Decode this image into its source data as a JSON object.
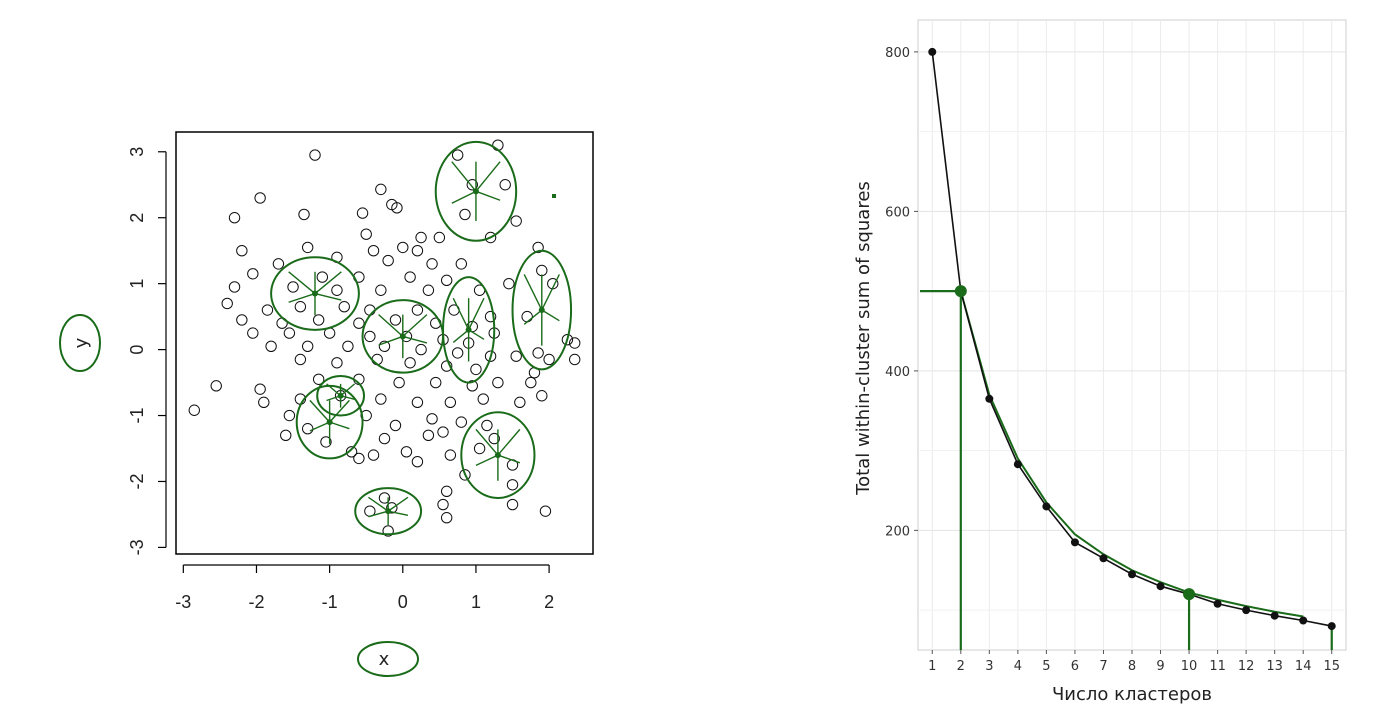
{
  "chart_data": [
    {
      "type": "scatter",
      "title": "",
      "xlabel": "x",
      "ylabel": "y",
      "xlim": [
        -3.1,
        2.6
      ],
      "ylim": [
        -3.1,
        3.3
      ],
      "x_ticks": [
        "-3",
        "-2",
        "-1",
        "0",
        "1",
        "2"
      ],
      "y_ticks": [
        "-3",
        "-2",
        "-1",
        "0",
        "1",
        "2",
        "3"
      ],
      "grid": false,
      "marker": "open-circle",
      "annotation_color": "#1a6b1a",
      "points": [
        [
          -1.2,
          2.95
        ],
        [
          -0.3,
          2.43
        ],
        [
          -0.15,
          2.2
        ],
        [
          -0.08,
          2.15
        ],
        [
          -0.55,
          2.07
        ],
        [
          -1.35,
          2.05
        ],
        [
          -2.3,
          2.0
        ],
        [
          -1.95,
          2.3
        ],
        [
          -0.5,
          1.75
        ],
        [
          0.25,
          1.7
        ],
        [
          0.5,
          1.7
        ],
        [
          -1.3,
          1.55
        ],
        [
          -0.4,
          1.5
        ],
        [
          0.0,
          1.55
        ],
        [
          0.2,
          1.5
        ],
        [
          -2.2,
          1.5
        ],
        [
          -0.9,
          1.4
        ],
        [
          -0.2,
          1.35
        ],
        [
          0.4,
          1.3
        ],
        [
          0.8,
          1.3
        ],
        [
          -1.7,
          1.3
        ],
        [
          -2.05,
          1.15
        ],
        [
          -1.1,
          1.1
        ],
        [
          -0.6,
          1.1
        ],
        [
          0.1,
          1.1
        ],
        [
          0.6,
          1.05
        ],
        [
          -2.3,
          0.95
        ],
        [
          -1.5,
          0.95
        ],
        [
          -0.9,
          0.9
        ],
        [
          -0.3,
          0.9
        ],
        [
          0.35,
          0.9
        ],
        [
          1.05,
          0.9
        ],
        [
          -2.4,
          0.7
        ],
        [
          -1.85,
          0.6
        ],
        [
          -1.4,
          0.65
        ],
        [
          -0.8,
          0.65
        ],
        [
          -0.45,
          0.6
        ],
        [
          0.2,
          0.6
        ],
        [
          0.7,
          0.6
        ],
        [
          1.2,
          0.5
        ],
        [
          -2.2,
          0.45
        ],
        [
          -1.65,
          0.4
        ],
        [
          -1.15,
          0.45
        ],
        [
          -0.6,
          0.4
        ],
        [
          -0.1,
          0.45
        ],
        [
          0.45,
          0.4
        ],
        [
          0.95,
          0.35
        ],
        [
          1.25,
          0.25
        ],
        [
          -2.05,
          0.25
        ],
        [
          -1.55,
          0.25
        ],
        [
          -1.0,
          0.25
        ],
        [
          -0.45,
          0.2
        ],
        [
          0.05,
          0.2
        ],
        [
          0.55,
          0.15
        ],
        [
          0.9,
          0.1
        ],
        [
          -1.8,
          0.05
        ],
        [
          -1.3,
          0.05
        ],
        [
          -0.75,
          0.05
        ],
        [
          -0.25,
          0.05
        ],
        [
          0.25,
          0.0
        ],
        [
          0.75,
          -0.05
        ],
        [
          1.2,
          -0.1
        ],
        [
          1.55,
          -0.1
        ],
        [
          -1.4,
          -0.15
        ],
        [
          -0.9,
          -0.2
        ],
        [
          -0.35,
          -0.15
        ],
        [
          0.1,
          -0.2
        ],
        [
          0.6,
          -0.25
        ],
        [
          1.0,
          -0.3
        ],
        [
          -2.55,
          -0.55
        ],
        [
          -1.95,
          -0.6
        ],
        [
          -1.15,
          -0.45
        ],
        [
          -0.6,
          -0.45
        ],
        [
          -0.05,
          -0.5
        ],
        [
          0.45,
          -0.5
        ],
        [
          0.95,
          -0.55
        ],
        [
          1.3,
          -0.5
        ],
        [
          1.75,
          -0.5
        ],
        [
          -1.9,
          -0.8
        ],
        [
          -1.4,
          -0.75
        ],
        [
          -0.85,
          -0.7
        ],
        [
          -0.3,
          -0.75
        ],
        [
          0.2,
          -0.8
        ],
        [
          0.65,
          -0.8
        ],
        [
          1.1,
          -0.75
        ],
        [
          1.6,
          -0.8
        ],
        [
          1.9,
          -0.7
        ],
        [
          -2.85,
          -0.92
        ],
        [
          -1.55,
          -1.0
        ],
        [
          -0.5,
          -1.0
        ],
        [
          0.4,
          -1.05
        ],
        [
          0.8,
          -1.1
        ],
        [
          -1.3,
          -1.2
        ],
        [
          -0.1,
          -1.15
        ],
        [
          0.55,
          -1.25
        ],
        [
          1.15,
          -1.15
        ],
        [
          -1.05,
          -1.4
        ],
        [
          -0.25,
          -1.35
        ],
        [
          0.35,
          -1.3
        ],
        [
          1.25,
          -1.35
        ],
        [
          -1.6,
          -1.3
        ],
        [
          -0.7,
          -1.55
        ],
        [
          0.05,
          -1.55
        ],
        [
          0.65,
          -1.6
        ],
        [
          1.05,
          -1.5
        ],
        [
          -0.4,
          -1.6
        ],
        [
          0.2,
          -1.7
        ],
        [
          1.5,
          -1.75
        ],
        [
          -0.6,
          -1.65
        ],
        [
          0.85,
          -1.9
        ],
        [
          1.5,
          -2.05
        ],
        [
          0.6,
          -2.15
        ],
        [
          -0.25,
          -2.25
        ],
        [
          0.55,
          -2.35
        ],
        [
          -0.45,
          -2.45
        ],
        [
          -0.15,
          -2.4
        ],
        [
          1.5,
          -2.35
        ],
        [
          1.95,
          -2.45
        ],
        [
          0.6,
          -2.55
        ],
        [
          -0.2,
          -2.75
        ],
        [
          0.75,
          2.95
        ],
        [
          1.3,
          3.1
        ],
        [
          0.95,
          2.5
        ],
        [
          1.4,
          2.5
        ],
        [
          0.85,
          2.05
        ],
        [
          1.55,
          1.95
        ],
        [
          1.2,
          1.7
        ],
        [
          1.85,
          1.55
        ],
        [
          1.9,
          1.2
        ],
        [
          1.45,
          1.0
        ],
        [
          2.05,
          1.0
        ],
        [
          1.7,
          0.5
        ],
        [
          2.25,
          0.15
        ],
        [
          2.35,
          0.1
        ],
        [
          1.85,
          -0.05
        ],
        [
          2.0,
          -0.15
        ],
        [
          1.8,
          -0.35
        ],
        [
          2.35,
          -0.15
        ]
      ]
    },
    {
      "type": "line",
      "title": "",
      "xlabel": "Число кластеров",
      "ylabel": "Total within-cluster sum of squares",
      "categories": [
        "1",
        "2",
        "3",
        "4",
        "5",
        "6",
        "7",
        "8",
        "9",
        "10",
        "11",
        "12",
        "13",
        "14",
        "15"
      ],
      "y_ticks": [
        "200",
        "400",
        "600",
        "800"
      ],
      "xlim": [
        0.5,
        15.5
      ],
      "ylim": [
        50,
        840
      ],
      "grid": true,
      "series": [
        {
          "values": [
            800,
            500,
            365,
            283,
            230,
            185,
            165,
            145,
            130,
            120,
            108,
            100,
            93,
            87,
            80
          ],
          "color": "#111111"
        }
      ],
      "annotation_series": [
        500,
        370,
        290,
        235,
        195,
        170,
        150,
        135,
        122,
        113,
        105,
        98,
        92
      ],
      "annotation_color": "#1a6b1a",
      "highlight_points": [
        {
          "x": 2,
          "y": 500
        },
        {
          "x": 10,
          "y": 120
        }
      ]
    }
  ]
}
